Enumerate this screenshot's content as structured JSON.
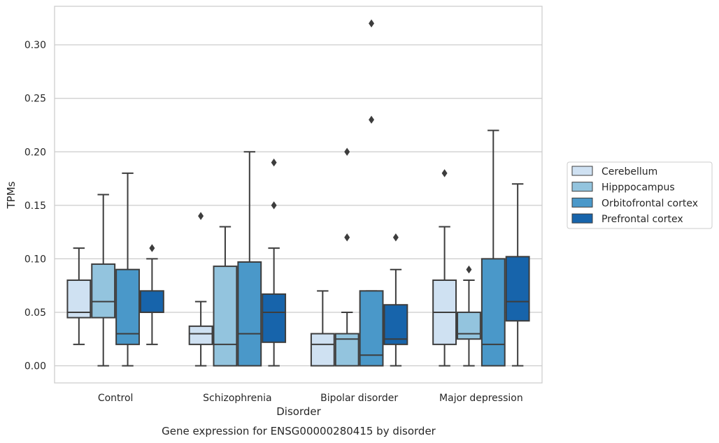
{
  "chart_data": {
    "type": "boxplot",
    "caption": "Gene expression for ENSG00000280415 by disorder",
    "xlabel": "Disorder",
    "ylabel": "TPMs",
    "ylim": [
      -0.016,
      0.336
    ],
    "yticks": [
      "0.00",
      "0.05",
      "0.10",
      "0.15",
      "0.20",
      "0.25",
      "0.30"
    ],
    "grid": "horizontal",
    "legend_position": "right",
    "categories": [
      "Control",
      "Schizophrenia",
      "Bipolar disorder",
      "Major depression"
    ],
    "series": [
      {
        "name": "Cerebellum",
        "color": "#cfe1f2",
        "boxes": [
          {
            "whisker_low": 0.02,
            "q1": 0.045,
            "median": 0.05,
            "q3": 0.08,
            "whisker_high": 0.11,
            "outliers": []
          },
          {
            "whisker_low": 0.0,
            "q1": 0.02,
            "median": 0.03,
            "q3": 0.037,
            "whisker_high": 0.06,
            "outliers": [
              0.14
            ]
          },
          {
            "whisker_low": 0.0,
            "q1": 0.0,
            "median": 0.02,
            "q3": 0.03,
            "whisker_high": 0.07,
            "outliers": []
          },
          {
            "whisker_low": 0.0,
            "q1": 0.02,
            "median": 0.05,
            "q3": 0.08,
            "whisker_high": 0.13,
            "outliers": [
              0.18
            ]
          }
        ]
      },
      {
        "name": "Hipppocampus",
        "color": "#93c4de",
        "boxes": [
          {
            "whisker_low": 0.0,
            "q1": 0.045,
            "median": 0.06,
            "q3": 0.095,
            "whisker_high": 0.16,
            "outliers": []
          },
          {
            "whisker_low": 0.0,
            "q1": 0.0,
            "median": 0.02,
            "q3": 0.093,
            "whisker_high": 0.13,
            "outliers": []
          },
          {
            "whisker_low": 0.0,
            "q1": 0.0,
            "median": 0.025,
            "q3": 0.03,
            "whisker_high": 0.05,
            "outliers": [
              0.12,
              0.2
            ]
          },
          {
            "whisker_low": 0.0,
            "q1": 0.025,
            "median": 0.03,
            "q3": 0.05,
            "whisker_high": 0.08,
            "outliers": [
              0.09
            ]
          }
        ]
      },
      {
        "name": "Orbitofrontal cortex",
        "color": "#4a98c9",
        "boxes": [
          {
            "whisker_low": 0.0,
            "q1": 0.02,
            "median": 0.03,
            "q3": 0.09,
            "whisker_high": 0.18,
            "outliers": []
          },
          {
            "whisker_low": 0.0,
            "q1": 0.0,
            "median": 0.03,
            "q3": 0.097,
            "whisker_high": 0.2,
            "outliers": []
          },
          {
            "whisker_low": 0.0,
            "q1": 0.0,
            "median": 0.01,
            "q3": 0.07,
            "whisker_high": 0.07,
            "outliers": [
              0.23,
              0.32
            ]
          },
          {
            "whisker_low": 0.0,
            "q1": 0.0,
            "median": 0.02,
            "q3": 0.1,
            "whisker_high": 0.22,
            "outliers": []
          }
        ]
      },
      {
        "name": "Prefrontal cortex",
        "color": "#1764ab",
        "boxes": [
          {
            "whisker_low": 0.02,
            "q1": 0.05,
            "median": 0.05,
            "q3": 0.07,
            "whisker_high": 0.1,
            "outliers": [
              0.11
            ]
          },
          {
            "whisker_low": 0.0,
            "q1": 0.022,
            "median": 0.05,
            "q3": 0.067,
            "whisker_high": 0.11,
            "outliers": [
              0.15,
              0.19
            ]
          },
          {
            "whisker_low": 0.0,
            "q1": 0.02,
            "median": 0.025,
            "q3": 0.057,
            "whisker_high": 0.09,
            "outliers": [
              0.12
            ]
          },
          {
            "whisker_low": 0.0,
            "q1": 0.042,
            "median": 0.06,
            "q3": 0.102,
            "whisker_high": 0.17,
            "outliers": []
          }
        ]
      }
    ]
  }
}
